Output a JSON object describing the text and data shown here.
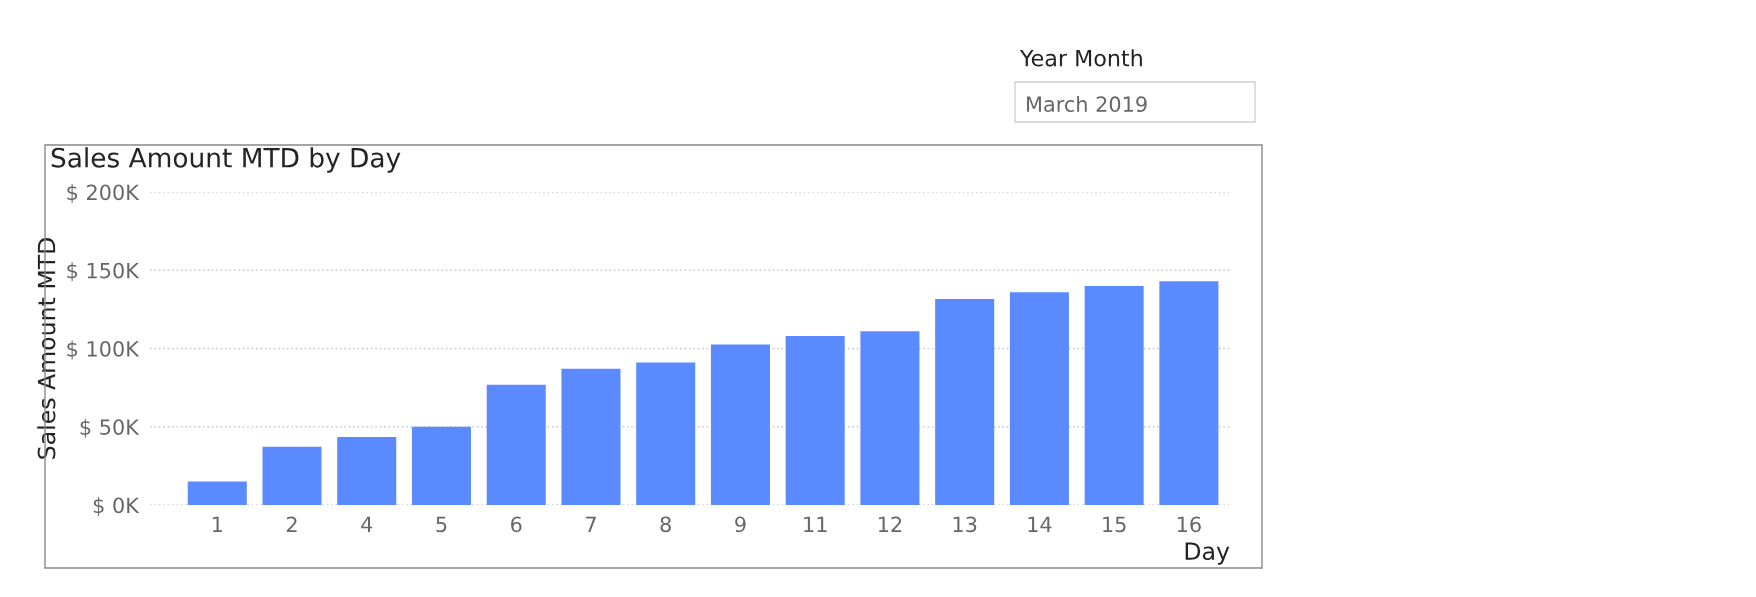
{
  "chart_data": {
    "type": "bar",
    "title": "Sales Amount MTD by Day",
    "xlabel": "Day",
    "ylabel": "Sales Amount MTD",
    "categories": [
      "1",
      "2",
      "4",
      "5",
      "6",
      "7",
      "8",
      "9",
      "11",
      "12",
      "13",
      "14",
      "15",
      "16"
    ],
    "values": [
      15000,
      37300,
      43400,
      50000,
      76900,
      87000,
      91000,
      102600,
      108000,
      111000,
      131700,
      136000,
      140000,
      143000
    ],
    "color": "#5b8aff",
    "ylim": [
      0,
      200000
    ],
    "yticks": [
      {
        "value": 0,
        "label": "$ 0K"
      },
      {
        "value": 50000,
        "label": "$ 50K"
      },
      {
        "value": 100000,
        "label": "$ 100K"
      },
      {
        "value": 150000,
        "label": "$ 150K"
      },
      {
        "value": 200000,
        "label": "$ 200K"
      }
    ],
    "grid": "y",
    "line_style": "dotted",
    "annotations": [
      "Year Month",
      "March 2019"
    ]
  }
}
